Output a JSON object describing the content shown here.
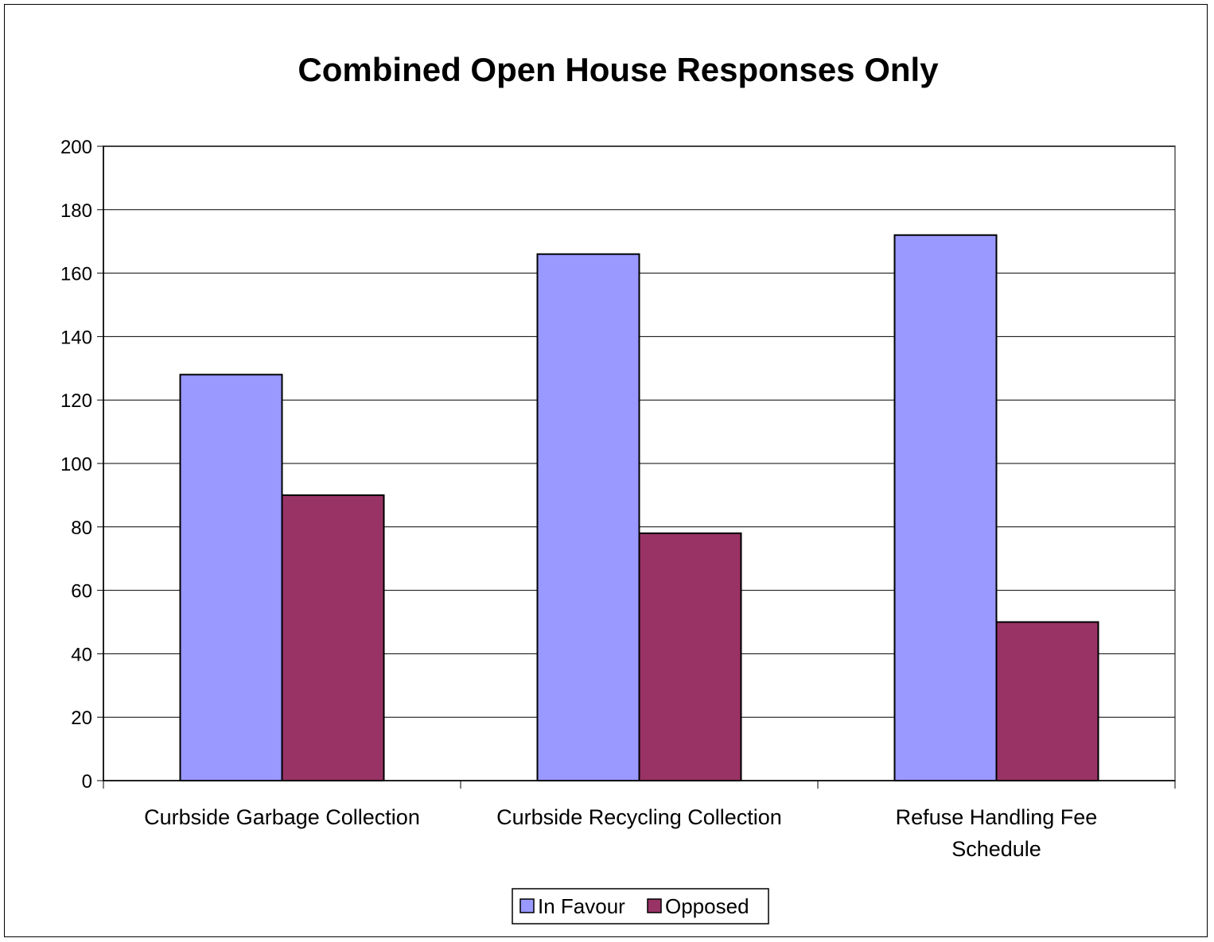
{
  "chart_data": {
    "type": "bar",
    "title": "Combined Open House Responses Only",
    "xlabel": "",
    "ylabel": "",
    "categories": [
      [
        "Curbside Garbage Collection"
      ],
      [
        "Curbside Recycling Collection"
      ],
      [
        "Refuse Handling Fee",
        "Schedule"
      ]
    ],
    "series": [
      {
        "name": "In Favour",
        "values": [
          128,
          166,
          172
        ],
        "color": "#9999FF"
      },
      {
        "name": "Opposed",
        "values": [
          90,
          78,
          50
        ],
        "color": "#993366"
      }
    ],
    "ylim": [
      0,
      200
    ],
    "yticks": [
      0,
      20,
      40,
      60,
      80,
      100,
      120,
      140,
      160,
      180,
      200
    ],
    "grid": true,
    "legend_position": "bottom"
  }
}
